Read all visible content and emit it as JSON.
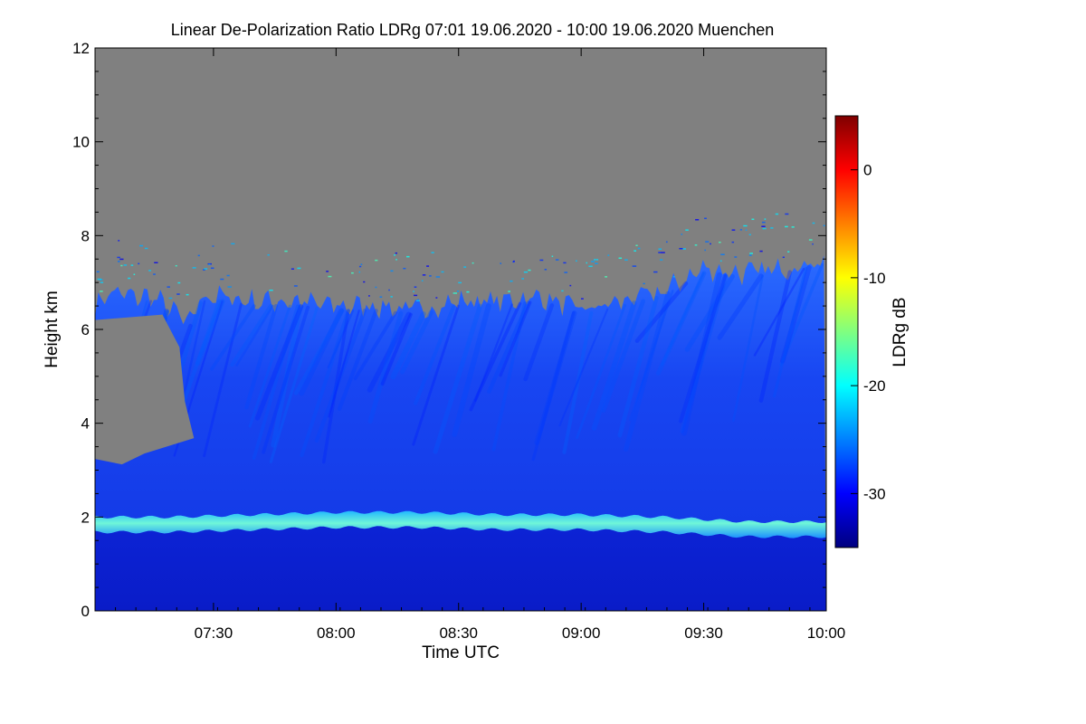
{
  "chart_data": {
    "type": "heatmap",
    "title": "Linear De-Polarization Ratio LDRg   07:01 19.06.2020 - 10:00 19.06.2020 Muenchen",
    "xlabel": "Time UTC",
    "ylabel": "Height km",
    "colorbar_label": "LDRg dB",
    "x_range_minutes_utc": [
      421,
      600
    ],
    "x_ticks": [
      {
        "minute": 450,
        "label": "07:30"
      },
      {
        "minute": 480,
        "label": "08:00"
      },
      {
        "minute": 510,
        "label": "08:30"
      },
      {
        "minute": 540,
        "label": "09:00"
      },
      {
        "minute": 570,
        "label": "09:30"
      },
      {
        "minute": 600,
        "label": "10:00"
      }
    ],
    "y_range_km": [
      0,
      12
    ],
    "y_ticks": [
      0,
      2,
      4,
      6,
      8,
      10,
      12
    ],
    "colorbar_range_db": [
      -35,
      5
    ],
    "colorbar_ticks": [
      0,
      -10,
      -20,
      -30
    ],
    "colormap": [
      "#00007f",
      "#0000ff",
      "#0080ff",
      "#00ffff",
      "#80ff80",
      "#ffff00",
      "#ff8000",
      "#ff0000",
      "#7f0000"
    ],
    "no_signal_color": "#808080",
    "cloud_top_km": [
      [
        421,
        6.5
      ],
      [
        425,
        6.8
      ],
      [
        430,
        6.7
      ],
      [
        435,
        6.7
      ],
      [
        440,
        6.4
      ],
      [
        444,
        6.1
      ],
      [
        447,
        6.7
      ],
      [
        452,
        6.7
      ],
      [
        460,
        6.6
      ],
      [
        470,
        6.6
      ],
      [
        480,
        6.5
      ],
      [
        490,
        6.5
      ],
      [
        500,
        6.4
      ],
      [
        510,
        6.6
      ],
      [
        520,
        6.6
      ],
      [
        530,
        6.7
      ],
      [
        540,
        6.4
      ],
      [
        550,
        6.6
      ],
      [
        560,
        6.8
      ],
      [
        570,
        7.3
      ],
      [
        580,
        7.2
      ],
      [
        590,
        7.3
      ],
      [
        600,
        7.5
      ]
    ],
    "low_gap_region": {
      "minute_range": [
        421,
        443
      ],
      "height_km": [
        3.2,
        6.2
      ]
    },
    "aerosol_layer_top_km": [
      [
        421,
        1.9
      ],
      [
        440,
        1.9
      ],
      [
        480,
        2.0
      ],
      [
        500,
        2.0
      ],
      [
        520,
        1.95
      ],
      [
        540,
        1.95
      ],
      [
        560,
        1.9
      ],
      [
        580,
        1.8
      ],
      [
        600,
        1.8
      ]
    ],
    "layer_values_db": {
      "cirrus": -31,
      "aerosol_layer_top": -22,
      "boundary_layer": -33
    }
  }
}
